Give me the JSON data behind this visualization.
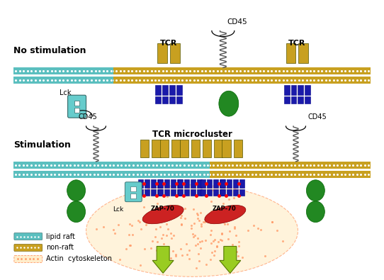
{
  "title_top": "No stimulation",
  "title_bottom": "Stimulation",
  "label_tcr_1": "TCR",
  "label_tcr_2": "TCR",
  "label_cd45_top": "CD45",
  "label_cd45_bottom_left": "CD45",
  "label_cd45_bottom_right": "CD45",
  "label_microcluster": "TCR microcluster",
  "label_lck_top": "Lck",
  "label_lck_bottom": "Lck",
  "label_zap1": "ZAP-70",
  "label_zap2": "ZAP-70",
  "legend_lipid": "lipid raft",
  "legend_nonraft": "non-raft",
  "legend_actin": "Actin  cytoskeleton",
  "color_lipid_raft": "#5bbfbf",
  "color_non_raft": "#c8a020",
  "color_actin": "#ff9966",
  "color_tcr_yellow": "#c8a020",
  "color_tcr_blue": "#1a1aaa",
  "color_zap": "#cc2222",
  "color_lck": "#66cccc",
  "color_cd45_enzyme": "#228822",
  "color_arrow": "#99cc22",
  "bg_color": "#ffffff"
}
